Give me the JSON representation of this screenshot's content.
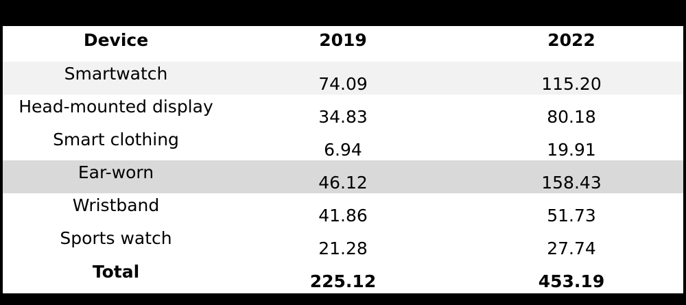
{
  "table": {
    "header": [
      "Device",
      "2019",
      "2022"
    ],
    "rows": [
      [
        "Smartwatch",
        "74.09",
        "115.20"
      ],
      [
        "Head-mounted display",
        "34.83",
        "80.18"
      ],
      [
        "Smart clothing",
        "6.94",
        "19.91"
      ],
      [
        "Ear-worn",
        "46.12",
        "158.43"
      ],
      [
        "Wristband",
        "41.86",
        "51.73"
      ],
      [
        "Sports watch",
        "21.28",
        "27.74"
      ]
    ],
    "total": [
      "Total",
      "225.12",
      "453.19"
    ]
  }
}
